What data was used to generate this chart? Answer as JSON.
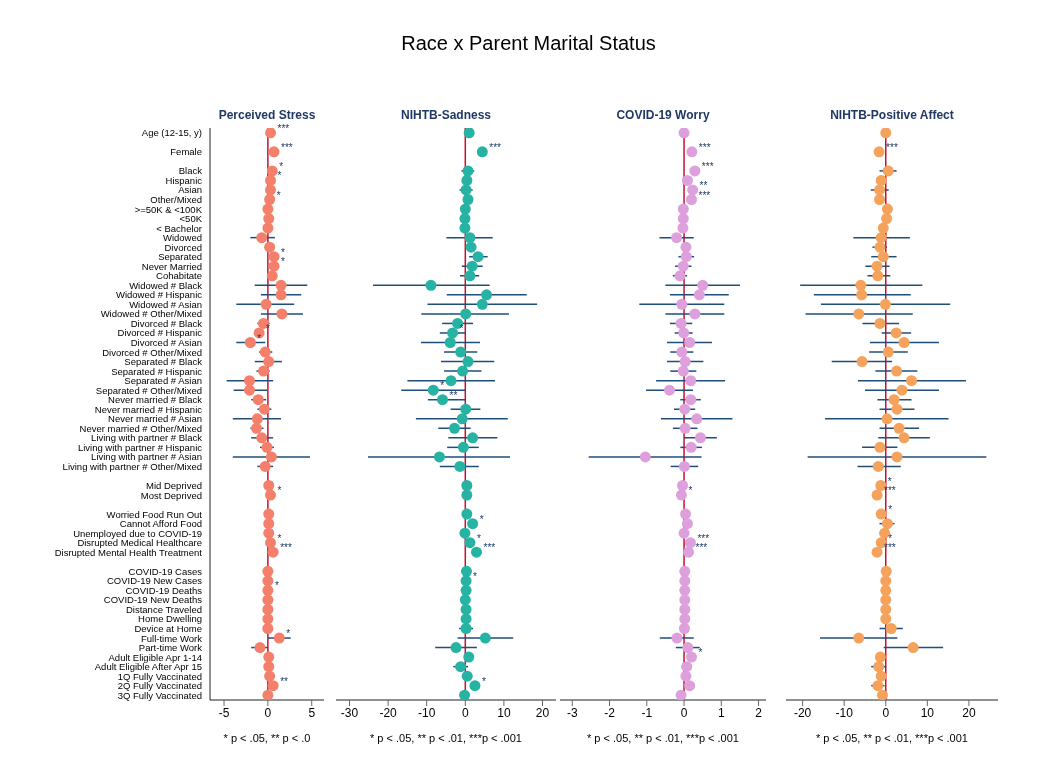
{
  "chart_data": [
    {
      "type": "scatter",
      "title": "Perceived Stress",
      "orientation": "horizontal",
      "marker": "circle",
      "categories": [
        "Age (12-15, y)",
        null,
        "Female",
        null,
        "Black",
        "Hispanic",
        "Asian",
        "Other/Mixed",
        ">=50K & <100K",
        "<50K",
        "< Bachelor",
        "Widowed",
        "Divorced",
        "Separated",
        "Never Married",
        "Cohabitate",
        "Widowed # Black",
        "Widowed # Hispanic",
        "Widowed # Asian",
        "Widowed # Other/Mixed",
        "Divorced # Black",
        "Divorced # Hispanic",
        "Divorced # Asian",
        "Divorced # Other/Mixed",
        "Separated # Black",
        "Separated # Hispanic",
        "Separated # Asian",
        "Separated # Other/Mixed",
        "Never married # Black",
        "Never married # Hispanic",
        "Never married # Asian",
        "Never married # Other/Mixed",
        "Living with partner # Black",
        "Living with partner # Hispanic",
        "Living with partner # Asian",
        "Living with partner # Other/Mixed",
        null,
        "Mid Deprived",
        "Most Deprived",
        null,
        "Worried Food Run Out",
        "Cannot Afford Food",
        "Unemployed due to COVID-19",
        "Disrupted Medical Healthcare",
        "Disrupted Mental Health Treatment",
        null,
        "COVID-19 Cases",
        "COVID-19 New Cases",
        "COVID-19 Deaths",
        "COVID-19 New Deaths",
        "Distance Traveled",
        "Home Dwelling",
        "Device at Home",
        "Full-time Work",
        "Part-time Work",
        "Adult Eligible Apr 1-14",
        "Adult Eligible After Apr 15",
        "1Q Fully Vaccinated",
        "2Q Fully Vaccinated",
        "3Q Fully Vaccinated"
      ],
      "series": [
        {
          "color": "#f47f6b",
          "values": [
            0.3,
            null,
            0.7,
            null,
            0.5,
            0.3,
            0.3,
            0.2,
            0.0,
            0.1,
            0.0,
            -0.7,
            0.2,
            0.7,
            0.7,
            0.5,
            1.5,
            1.5,
            -0.2,
            1.6,
            -0.5,
            -1.0,
            -2.0,
            -0.3,
            0.1,
            -0.5,
            -2.1,
            -2.1,
            -1.1,
            -0.4,
            -1.2,
            -1.3,
            -0.7,
            -0.1,
            0.4,
            -0.3,
            null,
            0.1,
            0.3,
            null,
            0.1,
            0.1,
            0.1,
            0.3,
            0.6,
            null,
            0,
            0,
            0,
            0,
            0,
            0,
            0,
            1.3,
            -0.9,
            0.1,
            0.1,
            0.2,
            0.6,
            0.0
          ],
          "errors": [
            null,
            null,
            null,
            null,
            null,
            null,
            null,
            null,
            null,
            null,
            null,
            [
              -2.0,
              0.8
            ],
            null,
            null,
            null,
            null,
            [
              -1.5,
              4.5
            ],
            [
              -0.8,
              3.8
            ],
            [
              -3.6,
              3.0
            ],
            [
              -0.8,
              4.0
            ],
            [
              -1.2,
              0.2
            ],
            null,
            [
              -3.6,
              -0.3
            ],
            [
              -1.0,
              0.5
            ],
            [
              -1.5,
              1.6
            ],
            [
              -1.3,
              0.2
            ],
            [
              -4.7,
              0.6
            ],
            [
              -3.9,
              -0.1
            ],
            [
              -1.9,
              -0.2
            ],
            [
              -1.2,
              0.4
            ],
            [
              -4.0,
              1.5
            ],
            [
              -2.0,
              -0.5
            ],
            [
              -1.9,
              0.6
            ],
            [
              -0.9,
              0.7
            ],
            [
              -4.0,
              4.8
            ],
            [
              -1.2,
              0.6
            ],
            null,
            null,
            null,
            null,
            null,
            null,
            null,
            null,
            null,
            null,
            null,
            null,
            null,
            null,
            null,
            null,
            null,
            [
              0,
              2.6
            ],
            [
              -1.9,
              0
            ],
            null,
            null,
            null,
            null,
            null
          ]
        }
      ],
      "xlim": [
        -6.6,
        6.4
      ],
      "xticks": [
        -5,
        0,
        5
      ],
      "ref_lines": [
        {
          "axis": "x",
          "value": 0,
          "color": "#c8102e"
        }
      ],
      "annotations": [
        "Race x Parent Marital Status",
        "* p < .05, ** p < .0",
        {
          "text": "***",
          "x": 0.3,
          "y": "Age (12-15, y)"
        },
        {
          "text": "***",
          "x": 0.7,
          "y": "Female"
        },
        {
          "text": "*",
          "x": 0.5,
          "y": "Black"
        },
        {
          "text": "*",
          "x": 0.3,
          "y": "Hispanic"
        },
        {
          "text": "*",
          "x": 0.2,
          "y": "Other/Mixed"
        },
        {
          "text": "*",
          "x": 0.7,
          "y": "Separated"
        },
        {
          "text": "*",
          "x": 0.7,
          "y": "Never Married"
        },
        {
          "text": "*",
          "x": -1.0,
          "y": "Divorced # Hispanic"
        },
        {
          "text": "*",
          "x": -2.0,
          "y": "Divorced # Asian"
        },
        {
          "text": "*",
          "x": 0.3,
          "y": "Most Deprived"
        },
        {
          "text": "*",
          "x": 0.3,
          "y": "Disrupted Medical Healthcare"
        },
        {
          "text": "***",
          "x": 0.6,
          "y": "Disrupted Mental Health Treatment"
        },
        {
          "text": "*",
          "x": 0,
          "y": "COVID-19 Deaths"
        },
        {
          "text": "*",
          "x": 1.3,
          "y": "Full-time Work"
        },
        {
          "text": "**",
          "x": 0.6,
          "y": "2Q Fully Vaccinated"
        }
      ]
    },
    {
      "type": "scatter",
      "title": "NIHTB-Sadness",
      "orientation": "horizontal",
      "marker": "circle",
      "tick_labels": "x",
      "categories": [
        "Age (12-15, y)",
        null,
        "Female",
        null,
        "Black",
        "Hispanic",
        "Asian",
        "Other/Mixed",
        ">=50K & <100K",
        "<50K",
        "< Bachelor",
        "Widowed",
        "Divorced",
        "Separated",
        "Never Married",
        "Cohabitate",
        "Widowed # Black",
        "Widowed # Hispanic",
        "Widowed # Asian",
        "Widowed # Other/Mixed",
        "Divorced # Black",
        "Divorced # Hispanic",
        "Divorced # Asian",
        "Divorced # Other/Mixed",
        "Separated # Black",
        "Separated # Hispanic",
        "Separated # Asian",
        "Separated # Other/Mixed",
        "Never married # Black",
        "Never married # Hispanic",
        "Never married # Asian",
        "Never married # Other/Mixed",
        "Living with partner # Black",
        "Living with partner # Hispanic",
        "Living with partner # Asian",
        "Living with partner # Other/Mixed",
        null,
        "Mid Deprived",
        "Most Deprived",
        null,
        "Worried Food Run Out",
        "Cannot Afford Food",
        "Unemployed due to COVID-19",
        "Disrupted Medical Healthcare",
        "Disrupted Mental Health Treatment",
        null,
        "COVID-19 Cases",
        "COVID-19 New Cases",
        "COVID-19 Deaths",
        "COVID-19 New Deaths",
        "Distance Traveled",
        "Home Dwelling",
        "Device at Home",
        "Full-time Work",
        "Part-time Work",
        "Adult Eligible Apr 1-14",
        "Adult Eligible After Apr 15",
        "1Q Fully Vaccinated",
        "2Q Fully Vaccinated",
        "3Q Fully Vaccinated"
      ],
      "series": [
        {
          "color": "#26b3a4",
          "values": [
            1.0,
            null,
            4.4,
            null,
            0.7,
            0.4,
            0.2,
            0.7,
            0.0,
            -0.1,
            -0.1,
            1.2,
            1.5,
            3.3,
            1.8,
            1.2,
            -8.9,
            5.5,
            4.4,
            0.1,
            -2.0,
            -3.3,
            -3.9,
            -1.2,
            0.7,
            -0.7,
            -3.7,
            -8.3,
            -5.9,
            0.1,
            -0.8,
            -2.8,
            1.9,
            -0.5,
            -6.7,
            -1.4,
            null,
            0.4,
            0.4,
            null,
            0.4,
            1.9,
            -0.1,
            1.2,
            2.9,
            null,
            0.3,
            0.2,
            0.2,
            0,
            0.2,
            0.2,
            0.2,
            5.2,
            -2.4,
            0.9,
            -1.2,
            0.5,
            2.5,
            -0.2
          ],
          "errors": [
            null,
            null,
            null,
            null,
            [
              -1.0,
              2.3
            ],
            null,
            [
              -1.5,
              1.9
            ],
            null,
            null,
            null,
            null,
            [
              -4.9,
              7.1
            ],
            null,
            [
              1.0,
              5.8
            ],
            [
              -0.9,
              4.5
            ],
            [
              -1.4,
              3.6
            ],
            [
              -23.9,
              6.3
            ],
            [
              -4.8,
              15.9
            ],
            [
              -9.8,
              18.6
            ],
            [
              -11.4,
              11.3
            ],
            [
              -6.0,
              2.0
            ],
            [
              -6.6,
              0
            ],
            [
              -11.5,
              3.8
            ],
            [
              -5.5,
              3.1
            ],
            [
              -6.3,
              7.5
            ],
            [
              -5.5,
              4.2
            ],
            [
              -15.0,
              7.7
            ],
            [
              -16.6,
              0
            ],
            [
              -9.7,
              0
            ],
            [
              -3.8,
              3.9
            ],
            [
              -12.8,
              11.0
            ],
            [
              -7.0,
              1.4
            ],
            [
              -4.4,
              8.3
            ],
            [
              -4.7,
              3.5
            ],
            [
              -25.2,
              11.6
            ],
            [
              -6.6,
              3.5
            ],
            null,
            null,
            null,
            null,
            null,
            null,
            null,
            null,
            null,
            null,
            null,
            null,
            null,
            null,
            null,
            null,
            [
              -1.6,
              2.0
            ],
            [
              -2.0,
              12.4
            ],
            [
              -7.8,
              3.0
            ],
            null,
            [
              -3.1,
              0.7
            ],
            null,
            null,
            null
          ]
        }
      ],
      "xlim": [
        -33.5,
        23.5
      ],
      "xticks": [
        -30,
        -20,
        -10,
        0,
        10,
        20
      ],
      "ref_lines": [
        {
          "axis": "x",
          "value": 0,
          "color": "#c8102e"
        }
      ],
      "annotations": [
        "* p < .05, ** p < .01, ***p < .001",
        {
          "text": "***",
          "x": 4.4,
          "y": "Female"
        },
        {
          "text": "*",
          "x": -3.3,
          "y": "Divorced # Hispanic"
        },
        {
          "text": "*",
          "x": -8.3,
          "y": "Separated # Other/Mixed"
        },
        {
          "text": "**",
          "x": -5.9,
          "y": "Never married # Black"
        },
        {
          "text": "*",
          "x": 1.9,
          "y": "Cannot Afford Food"
        },
        {
          "text": "*",
          "x": 1.2,
          "y": "Disrupted Medical Healthcare"
        },
        {
          "text": "***",
          "x": 2.9,
          "y": "Disrupted Mental Health Treatment"
        },
        {
          "text": "*",
          "x": 0.2,
          "y": "COVID-19 New Cases"
        },
        {
          "text": "*",
          "x": 2.5,
          "y": "2Q Fully Vaccinated"
        }
      ]
    },
    {
      "type": "scatter",
      "title": "COVID-19 Worry",
      "orientation": "horizontal",
      "marker": "circle",
      "tick_labels": "x",
      "categories": [
        "Age (12-15, y)",
        null,
        "Female",
        null,
        "Black",
        "Hispanic",
        "Asian",
        "Other/Mixed",
        ">=50K & <100K",
        "<50K",
        "< Bachelor",
        "Widowed",
        "Divorced",
        "Separated",
        "Never Married",
        "Cohabitate",
        "Widowed # Black",
        "Widowed # Hispanic",
        "Widowed # Asian",
        "Widowed # Other/Mixed",
        "Divorced # Black",
        "Divorced # Hispanic",
        "Divorced # Asian",
        "Divorced # Other/Mixed",
        "Separated # Black",
        "Separated # Hispanic",
        "Separated # Asian",
        "Separated # Other/Mixed",
        "Never married # Black",
        "Never married # Hispanic",
        "Never married # Asian",
        "Never married # Other/Mixed",
        "Living with partner # Black",
        "Living with partner # Hispanic",
        "Living with partner # Asian",
        "Living with partner # Other/Mixed",
        null,
        "Mid Deprived",
        "Most Deprived",
        null,
        "Worried Food Run Out",
        "Cannot Afford Food",
        "Unemployed due to COVID-19",
        "Disrupted Medical Healthcare",
        "Disrupted Mental Health Treatment",
        null,
        "COVID-19 Cases",
        "COVID-19 New Cases",
        "COVID-19 Deaths",
        "COVID-19 New Deaths",
        "Distance Traveled",
        "Home Dwelling",
        "Device at Home",
        "Full-time Work",
        "Part-time Work",
        "Adult Eligible Apr 1-14",
        "Adult Eligible After Apr 15",
        "1Q Fully Vaccinated",
        "2Q Fully Vaccinated",
        "3Q Fully Vaccinated"
      ],
      "series": [
        {
          "color": "#dda0dd",
          "values": [
            0,
            null,
            0.21,
            null,
            0.29,
            0.09,
            0.23,
            0.2,
            -0.02,
            -0.02,
            -0.03,
            -0.2,
            0.05,
            0.06,
            -0.02,
            -0.11,
            0.5,
            0.41,
            -0.06,
            0.29,
            -0.08,
            -0.01,
            0.15,
            -0.06,
            0.03,
            -0.02,
            0.18,
            -0.39,
            0.18,
            0.02,
            0.34,
            0.03,
            0.44,
            0.19,
            -1.04,
            0.01,
            null,
            -0.04,
            -0.07,
            null,
            0.04,
            0.09,
            0,
            0.17,
            0.12,
            null,
            0.02,
            0.02,
            0.02,
            0.02,
            0.02,
            0.02,
            0.01,
            -0.19,
            0.1,
            0.2,
            0.07,
            0.05,
            0.15,
            -0.08
          ],
          "errors": [
            null,
            null,
            null,
            null,
            null,
            null,
            null,
            null,
            null,
            null,
            null,
            [
              -0.66,
              0.26
            ],
            null,
            [
              -0.15,
              0.27
            ],
            [
              -0.24,
              0.2
            ],
            [
              -0.3,
              0.08
            ],
            [
              -0.5,
              1.5
            ],
            [
              -0.38,
              1.2
            ],
            [
              -1.2,
              1.08
            ],
            [
              -0.5,
              1.08
            ],
            [
              -0.38,
              0.22
            ],
            [
              -0.25,
              0.23
            ],
            [
              -0.46,
              0.75
            ],
            [
              -0.37,
              0.25
            ],
            [
              -0.46,
              0.52
            ],
            [
              -0.37,
              0.33
            ],
            [
              -0.75,
              1.1
            ],
            [
              -1.02,
              0.24
            ],
            [
              -0.1,
              0.45
            ],
            [
              -0.27,
              0.3
            ],
            [
              -0.62,
              1.3
            ],
            [
              -0.3,
              0.36
            ],
            [
              0,
              0.88
            ],
            [
              -0.1,
              0.48
            ],
            [
              -2.56,
              0.47
            ],
            [
              -0.36,
              0.38
            ],
            null,
            null,
            null,
            null,
            null,
            null,
            null,
            null,
            null,
            null,
            null,
            null,
            null,
            null,
            null,
            null,
            null,
            [
              -0.65,
              0.26
            ],
            [
              -0.22,
              0.42
            ],
            null,
            null,
            null,
            null,
            null
          ]
        }
      ],
      "xlim": [
        -3.33,
        2.2
      ],
      "xticks": [
        -3,
        -2,
        -1,
        0,
        1,
        2
      ],
      "ref_lines": [
        {
          "axis": "x",
          "value": 0,
          "color": "#c8102e"
        }
      ],
      "annotations": [
        "* p < .05, ** p < .01, ***p < .001",
        {
          "text": "***",
          "x": 0.21,
          "y": "Female"
        },
        {
          "text": "***",
          "x": 0.29,
          "y": "Black"
        },
        {
          "text": "**",
          "x": 0.23,
          "y": "Asian"
        },
        {
          "text": "***",
          "x": 0.2,
          "y": "Other/Mixed"
        },
        {
          "text": "*",
          "x": -0.07,
          "y": "Most Deprived"
        },
        {
          "text": "***",
          "x": 0.17,
          "y": "Disrupted Medical Healthcare"
        },
        {
          "text": "***",
          "x": 0.12,
          "y": "Disrupted Mental Health Treatment"
        },
        {
          "text": "*",
          "x": 0.2,
          "y": "Adult Eligible Apr 1-14"
        }
      ]
    },
    {
      "type": "scatter",
      "title": "NIHTB-Positive Affect",
      "orientation": "horizontal",
      "marker": "circle",
      "tick_labels": "x",
      "categories": [
        "Age (12-15, y)",
        null,
        "Female",
        null,
        "Black",
        "Hispanic",
        "Asian",
        "Other/Mixed",
        ">=50K & <100K",
        "<50K",
        "< Bachelor",
        "Widowed",
        "Divorced",
        "Separated",
        "Never Married",
        "Cohabitate",
        "Widowed # Black",
        "Widowed # Hispanic",
        "Widowed # Asian",
        "Widowed # Other/Mixed",
        "Divorced # Black",
        "Divorced # Hispanic",
        "Divorced # Asian",
        "Divorced # Other/Mixed",
        "Separated # Black",
        "Separated # Hispanic",
        "Separated # Asian",
        "Separated # Other/Mixed",
        "Never married # Black",
        "Never married # Hispanic",
        "Never married # Asian",
        "Never married # Other/Mixed",
        "Living with partner # Black",
        "Living with partner # Hispanic",
        "Living with partner # Asian",
        "Living with partner # Other/Mixed",
        null,
        "Mid Deprived",
        "Most Deprived",
        null,
        "Worried Food Run Out",
        "Cannot Afford Food",
        "Unemployed due to COVID-19",
        "Disrupted Medical Healthcare",
        "Disrupted Mental Health Treatment",
        null,
        "COVID-19 Cases",
        "COVID-19 New Cases",
        "COVID-19 Deaths",
        "COVID-19 New Deaths",
        "Distance Traveled",
        "Home Dwelling",
        "Device at Home",
        "Full-time Work",
        "Part-time Work",
        "Adult Eligible Apr 1-14",
        "Adult Eligible After Apr 15",
        "1Q Fully Vaccinated",
        "2Q Fully Vaccinated",
        "3Q Fully Vaccinated"
      ],
      "series": [
        {
          "color": "#f5a35c",
          "values": [
            0,
            null,
            -1.6,
            null,
            0.6,
            -1.1,
            -1.5,
            -1.5,
            0.4,
            0.2,
            -0.6,
            -1.1,
            -1.4,
            -0.6,
            -2.1,
            -1.9,
            -6.0,
            -5.8,
            -0.1,
            -6.5,
            -1.4,
            2.5,
            4.4,
            0.6,
            -5.7,
            2.6,
            6.2,
            3.9,
            2.0,
            2.7,
            0.3,
            3.2,
            4.4,
            -1.4,
            2.7,
            -1.8,
            null,
            -1.2,
            -2.1,
            null,
            -1.1,
            0.4,
            -0.3,
            -1.1,
            -2.1,
            null,
            0.1,
            0,
            0,
            0,
            0,
            0,
            1.3,
            -6.5,
            6.6,
            -1.3,
            -1.7,
            -1.1,
            -1.9,
            -0.8
          ],
          "errors": [
            null,
            null,
            null,
            null,
            [
              -1.5,
              2.6
            ],
            null,
            [
              -3.6,
              0.7
            ],
            null,
            null,
            null,
            null,
            [
              -7.8,
              5.8
            ],
            [
              -3.2,
              0.3
            ],
            [
              -3.5,
              2.6
            ],
            [
              -4.9,
              0.9
            ],
            [
              -4.4,
              1.1
            ],
            [
              -20.6,
              8.8
            ],
            [
              -17.3,
              6.0
            ],
            [
              -15.6,
              15.5
            ],
            [
              -19.3,
              6.5
            ],
            [
              -5.6,
              3.2
            ],
            [
              -1.0,
              6.1
            ],
            [
              -3.8,
              12.8
            ],
            [
              -4.0,
              5.3
            ],
            [
              -13.0,
              1.5
            ],
            [
              -2.5,
              7.6
            ],
            [
              -6.7,
              19.3
            ],
            [
              -5.0,
              12.8
            ],
            [
              -2.0,
              6.2
            ],
            [
              -1.5,
              6.9
            ],
            [
              -14.6,
              15.1
            ],
            [
              -1.5,
              8.0
            ],
            [
              -1.8,
              10.6
            ],
            [
              -5.7,
              2.8
            ],
            [
              -18.8,
              24.2
            ],
            [
              -6.8,
              3.6
            ],
            null,
            null,
            null,
            null,
            null,
            [
              -1.5,
              2.1
            ],
            null,
            null,
            null,
            null,
            null,
            null,
            null,
            null,
            null,
            null,
            [
              -1.5,
              4.1
            ],
            [
              -15.8,
              2.8
            ],
            [
              -0.5,
              13.8
            ],
            null,
            [
              -3.5,
              0.1
            ],
            null,
            [
              -3.5,
              -0.3
            ],
            null
          ]
        }
      ],
      "xlim": [
        -24,
        27
      ],
      "xticks": [
        -20,
        -10,
        0,
        10,
        20
      ],
      "ref_lines": [
        {
          "axis": "x",
          "value": 0,
          "color": "#c8102e"
        }
      ],
      "annotations": [
        "* p < .05, ** p < .01, ***p < .001",
        {
          "text": "***",
          "x": -1.6,
          "y": "Female"
        },
        {
          "text": "*",
          "x": -1.2,
          "y": "Mid Deprived"
        },
        {
          "text": "***",
          "x": -2.1,
          "y": "Most Deprived"
        },
        {
          "text": "*",
          "x": -1.1,
          "y": "Worried Food Run Out"
        },
        {
          "text": "*",
          "x": -1.1,
          "y": "Disrupted Medical Healthcare"
        },
        {
          "text": "***",
          "x": -2.1,
          "y": "Disrupted Mental Health Treatment"
        }
      ]
    }
  ]
}
